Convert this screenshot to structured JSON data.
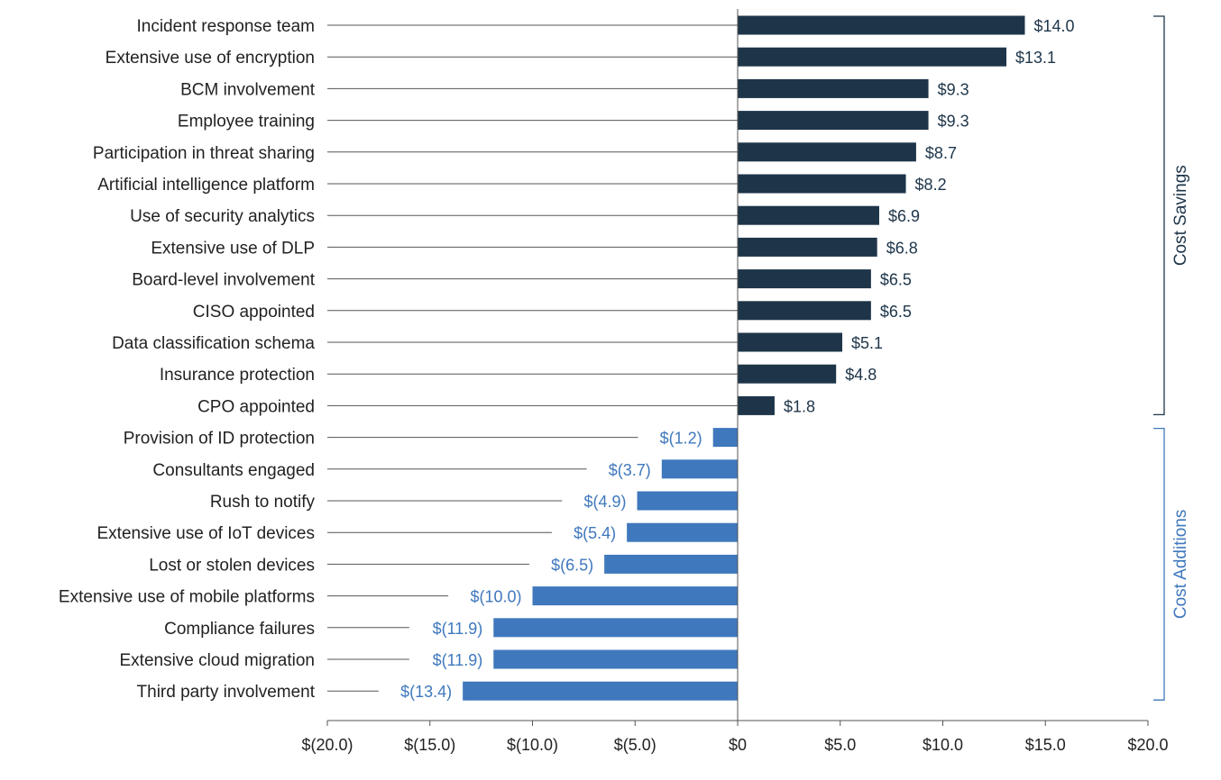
{
  "chart_data": {
    "type": "bar",
    "orientation": "horizontal",
    "title": "",
    "xlabel": "",
    "ylabel": "",
    "xlim": [
      -20,
      20
    ],
    "x_ticks": [
      "$(20.0)",
      "$(15.0)",
      "$(10.0)",
      "$(5.0)",
      "$0",
      "$5.0",
      "$10.0",
      "$15.0",
      "$20.0"
    ],
    "x_tick_values": [
      -20,
      -15,
      -10,
      -5,
      0,
      5,
      10,
      15,
      20
    ],
    "categories": [
      "Incident response team",
      "Extensive use of encryption",
      "BCM involvement",
      "Employee training",
      "Participation in threat sharing",
      "Artificial intelligence platform",
      "Use of security analytics",
      "Extensive use of DLP",
      "Board-level involvement",
      "CISO appointed",
      "Data classification schema",
      "Insurance protection",
      "CPO appointed",
      "Provision of ID protection",
      "Consultants engaged",
      "Rush to notify",
      "Extensive use of IoT devices",
      "Lost or stolen devices",
      "Extensive use of mobile platforms",
      "Compliance failures",
      "Extensive cloud migration",
      "Third party involvement"
    ],
    "values": [
      14.0,
      13.1,
      9.3,
      9.3,
      8.7,
      8.2,
      6.9,
      6.8,
      6.5,
      6.5,
      5.1,
      4.8,
      1.8,
      -1.2,
      -3.7,
      -4.9,
      -5.4,
      -6.5,
      -10.0,
      -11.9,
      -11.9,
      -13.4
    ],
    "value_labels": [
      "$14.0",
      "$13.1",
      "$9.3",
      "$9.3",
      "$8.7",
      "$8.2",
      "$6.9",
      "$6.8",
      "$6.5",
      "$6.5",
      "$5.1",
      "$4.8",
      "$1.8",
      "$(1.2)",
      "$(3.7)",
      "$(4.9)",
      "$(5.4)",
      "$(6.5)",
      "$(10.0)",
      "$(11.9)",
      "$(11.9)",
      "$(13.4)"
    ],
    "groups": [
      {
        "name": "Cost Savings",
        "first_index": 0,
        "last_index": 12,
        "color": "#1e3549"
      },
      {
        "name": "Cost Additions",
        "first_index": 13,
        "last_index": 21,
        "color": "#3f78bd"
      }
    ],
    "colors": {
      "positive": "#1e3549",
      "negative": "#3f78bd",
      "leader": "#555555",
      "axis": "#555555",
      "text": "#222222"
    }
  }
}
